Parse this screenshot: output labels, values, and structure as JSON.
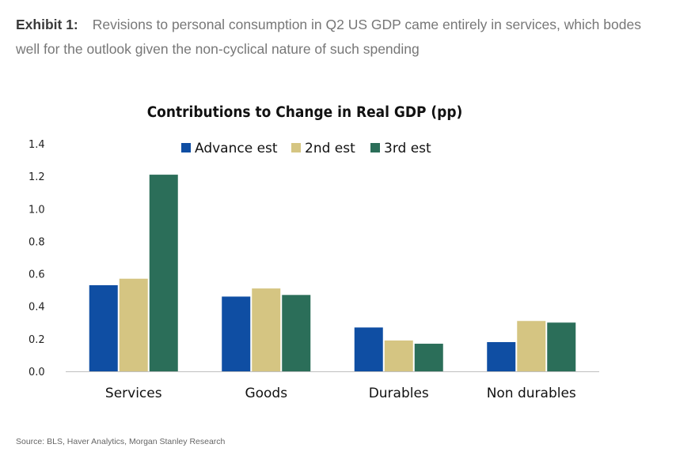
{
  "exhibit": {
    "label": "Exhibit 1:",
    "text": "Revisions to personal consumption in Q2 US GDP came entirely in services, which bodes well for the outlook given the non-cyclical nature of such spending"
  },
  "chart_data": {
    "type": "bar",
    "title": "Contributions to Change in Real GDP (pp)",
    "categories": [
      "Services",
      "Goods",
      "Durables",
      "Non durables"
    ],
    "series": [
      {
        "name": "Advance est",
        "color": "#0f4ea3",
        "values": [
          0.53,
          0.46,
          0.27,
          0.18
        ]
      },
      {
        "name": "2nd est",
        "color": "#d5c582",
        "values": [
          0.57,
          0.51,
          0.19,
          0.31
        ]
      },
      {
        "name": "3rd est",
        "color": "#2b6e59",
        "values": [
          1.21,
          0.47,
          0.17,
          0.3
        ]
      }
    ],
    "ylim": [
      0,
      1.4
    ],
    "yticks": [
      "0.0",
      "0.2",
      "0.4",
      "0.6",
      "0.8",
      "1.0",
      "1.2",
      "1.4"
    ],
    "xlabel": "",
    "ylabel": "",
    "legend": "top-center",
    "grid": false
  },
  "source": "Source: BLS, Haver Analytics, Morgan Stanley Research"
}
